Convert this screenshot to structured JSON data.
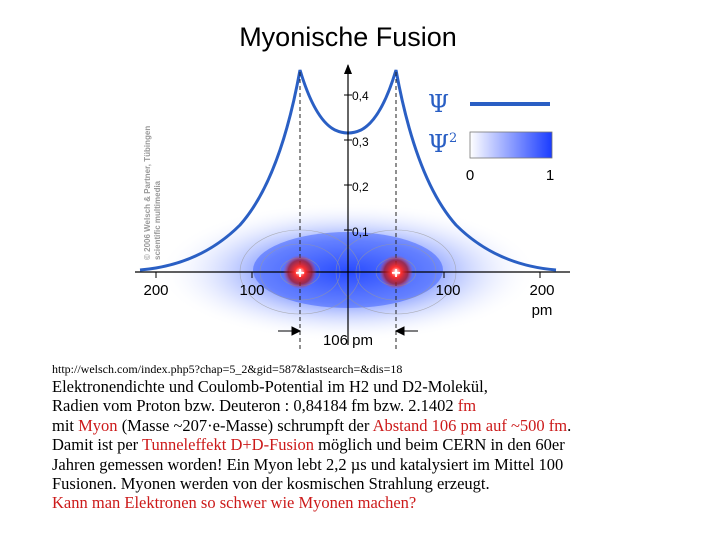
{
  "title": "Myonische Fusion",
  "figure": {
    "copyright": "© 2006 Welsch & Partner, Tübingen",
    "copyright2": "scientific multimedia",
    "y_ticks": [
      "0,4",
      "0,3",
      "0,2",
      "0,1"
    ],
    "x_ticks": [
      "200",
      "100",
      "100",
      "200"
    ],
    "x_unit": "pm",
    "distance_label": "106 pm",
    "legend_psi": "Ψ",
    "legend_psi2": "Ψ",
    "legend_psi2_sup": "2",
    "legend_min": "0",
    "legend_max": "1",
    "nucleus_symbol": "+",
    "colors": {
      "curve": "#2a5fc4",
      "density": "#1a3cff",
      "nucleus": "#e02020"
    }
  },
  "url": "http://welsch.com/index.php5?chap=5_2&gid=587&lastsearch=&dis=18",
  "text": {
    "l1": "Elektronendichte und Coulomb-Potential im H2 und D2-Molekül,",
    "l2a": "Radien vom Proton bzw. Deuteron : 0,84184 fm bzw. 2.1402 ",
    "l2b": "fm",
    "l3a": "mit ",
    "l3b": "Myon",
    "l3c": " (Masse ~207·e-Masse) schrumpft der ",
    "l3d": "Abstand 106 pm auf ~500 fm",
    "l3e": ".",
    "l4a": "Damit ist per ",
    "l4b": "Tunneleffekt D+D-Fusion",
    "l4c": " möglich und beim CERN in den 60er",
    "l5": "Jahren gemessen worden! Ein Myon lebt 2,2 µs und katalysiert im Mittel 100",
    "l6": "Fusionen. Myonen werden von der kosmischen Strahlung erzeugt.",
    "l7": "Kann man Elektronen so schwer wie Myonen machen?"
  }
}
